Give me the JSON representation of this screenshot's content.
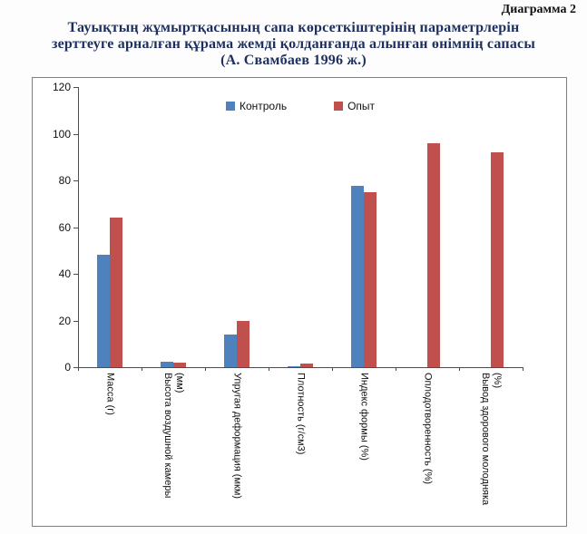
{
  "page": {
    "corner_label": "Диаграмма 2",
    "title_lines": [
      "Тауықтың жұмыртқасының сапа көрсеткіштерінің параметрлерін",
      "зерттеуге арналған құрама жемді  қолданғанда алынған өнімнің сапасы",
      "(А. Свамбаев 1996 ж.)"
    ]
  },
  "chart_data": {
    "type": "bar",
    "title": "Тауықтың жұмыртқасының сапа көрсеткіштерінің параметрлерін зерттеуге арналған құрама жемді қолданғанда алынған өнімнің сапасы (А. Свамбаев 1996 ж.)",
    "xlabel": "",
    "ylabel": "",
    "ylim": [
      0,
      120
    ],
    "yticks": [
      0,
      20,
      40,
      60,
      80,
      100,
      120
    ],
    "grid": false,
    "legend_position": "top-center",
    "categories": [
      "Масса (г)",
      "Высота воздушной камеры (мм)",
      "Упругая деформация (мкм)",
      "Плотность (г/см3)",
      "Индекс формы (%)",
      "Оплодотворенность (%)",
      "Вывод здорового молодняка (%)"
    ],
    "series": [
      {
        "name": "Контроль",
        "color": "#4F81BD",
        "values": [
          48,
          2.5,
          14,
          0.5,
          77.5,
          0,
          0
        ]
      },
      {
        "name": "Опыт",
        "color": "#C0504D",
        "values": [
          64,
          2,
          20,
          1.5,
          75,
          96,
          92
        ]
      }
    ]
  }
}
